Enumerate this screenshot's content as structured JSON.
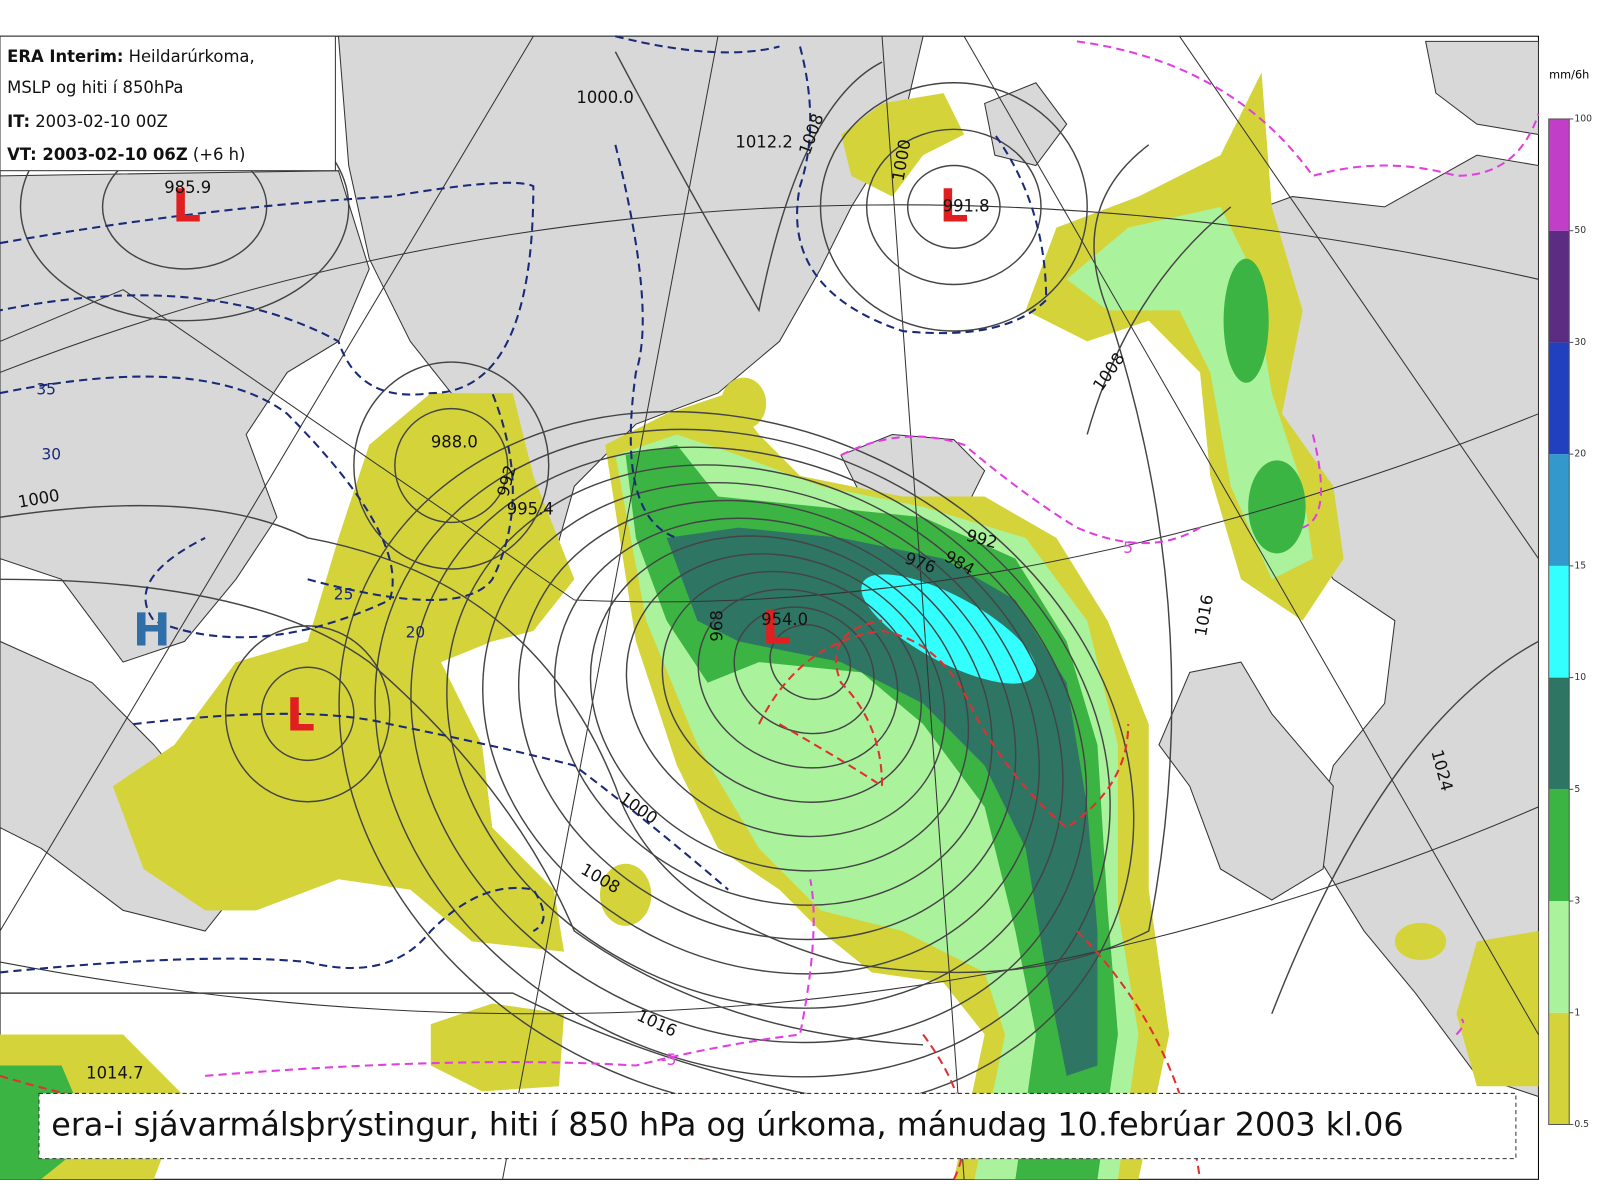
{
  "info_box": {
    "lines": [
      {
        "label": "ERA Interim:",
        "text": "Heildarúrkoma,"
      },
      {
        "text": "MSLP og hiti í 850hPa"
      },
      {
        "label": "IT:",
        "text": "2003-02-10 00Z"
      },
      {
        "label": "VT: 2003-02-10 06Z",
        "text": "(+6 h)"
      }
    ]
  },
  "pressure_centers": [
    "L",
    "L",
    "L",
    "L",
    "H"
  ],
  "isobar_labels": [
    "1000.0",
    "1012.2",
    "1008",
    "1000",
    "991.8",
    "985.9",
    "1008",
    "1000",
    "988.0",
    "992",
    "995.4",
    "954.0",
    "968",
    "976",
    "984",
    "992",
    "1016",
    "1024",
    "1000",
    "1008",
    "1016",
    "1014.7"
  ],
  "temperature_labels": [
    "35",
    "30",
    "25",
    "20",
    "5",
    "-5"
  ],
  "colorbar": {
    "unit": "mm/6h",
    "ticks": [
      0.5,
      1,
      3,
      5,
      10,
      15,
      20,
      30,
      50,
      100
    ],
    "colors": [
      "#d4d43a",
      "#aaf29c",
      "#3cb443",
      "#2e7563",
      "#33ffff",
      "#3399cc",
      "#2040c0",
      "#5c2c80",
      "#c03ec8"
    ]
  },
  "caption": "era-i sjávarmálsþrýstingur, hiti í 850 hPa og úrkoma, mánudag 10.febrúar 2003 kl.06"
}
